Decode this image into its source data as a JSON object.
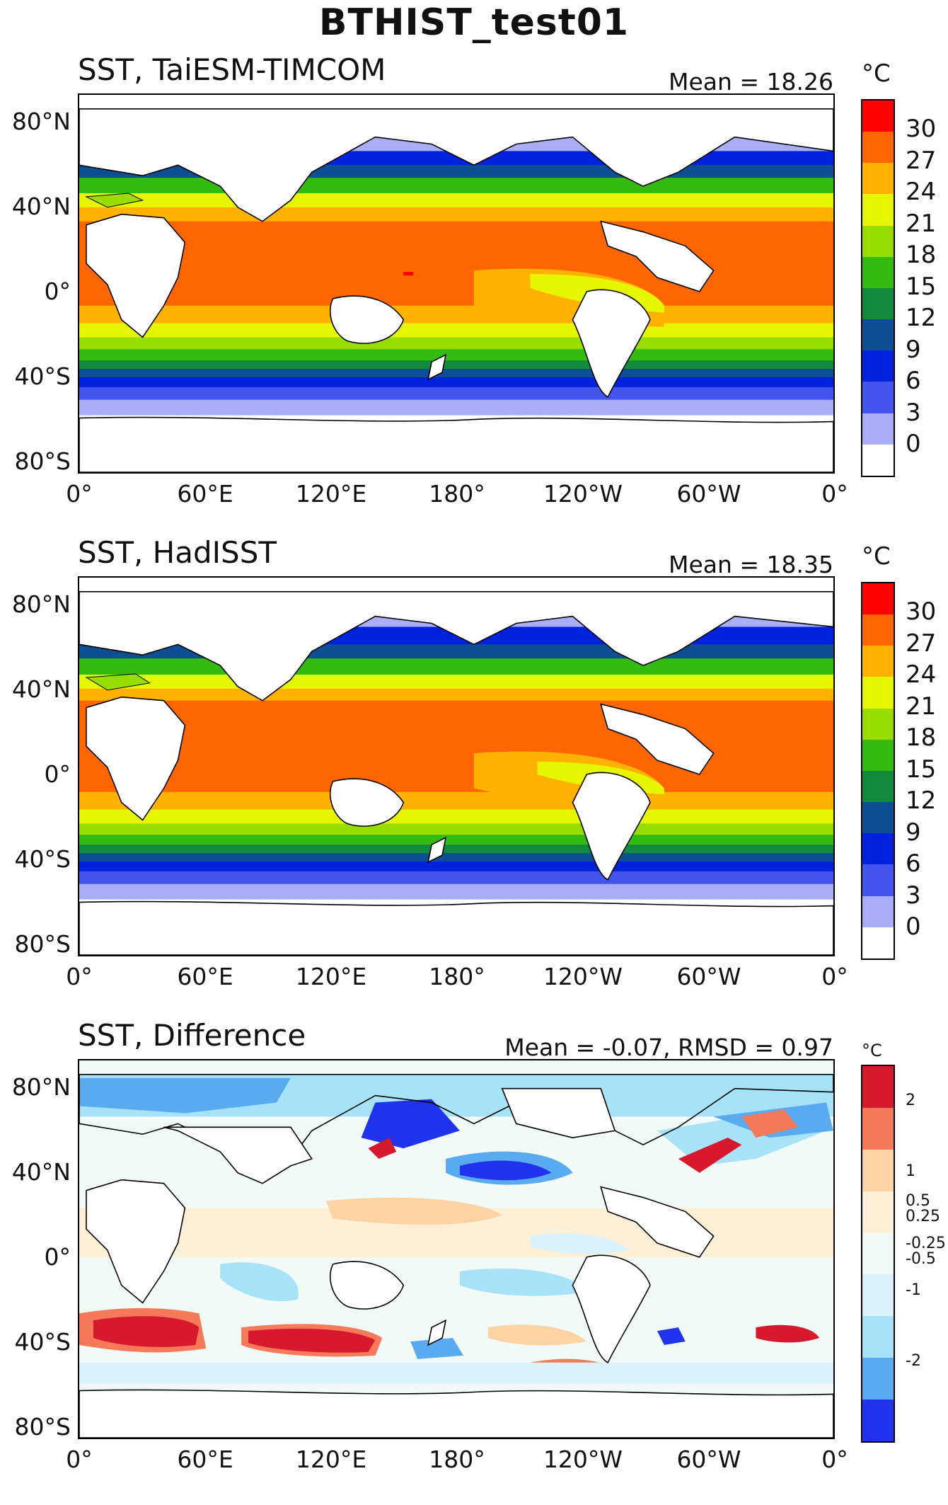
{
  "figure_title": "BTHIST_test01",
  "axes": {
    "lat_labels": [
      "80°N",
      "40°N",
      "0°",
      "40°S",
      "80°S"
    ],
    "lon_labels": [
      "0°",
      "60°E",
      "120°E",
      "180°",
      "120°W",
      "60°W",
      "0°"
    ]
  },
  "panels": [
    {
      "title": "SST, TaiESM-TIMCOM",
      "stat": "Mean = 18.26",
      "unit": "°C",
      "colorbar": {
        "labels": [
          "30",
          "27",
          "24",
          "21",
          "18",
          "15",
          "12",
          "9",
          "6",
          "3",
          "0"
        ],
        "colors": [
          "#ff0000",
          "#ff6600",
          "#ffb300",
          "#e6f500",
          "#99dd00",
          "#33bb11",
          "#128a3c",
          "#0c4f93",
          "#0022dd",
          "#4455ee",
          "#a9aef7",
          "#ffffff"
        ]
      }
    },
    {
      "title": "SST, HadISST",
      "stat": "Mean = 18.35",
      "unit": "°C",
      "colorbar": {
        "labels": [
          "30",
          "27",
          "24",
          "21",
          "18",
          "15",
          "12",
          "9",
          "6",
          "3",
          "0"
        ],
        "colors": [
          "#ff0000",
          "#ff6600",
          "#ffb300",
          "#e6f500",
          "#99dd00",
          "#33bb11",
          "#128a3c",
          "#0c4f93",
          "#0022dd",
          "#4455ee",
          "#a9aef7",
          "#ffffff"
        ]
      }
    },
    {
      "title": "SST, Difference",
      "stat": "Mean = -0.07, RMSD = 0.97",
      "unit": "°C",
      "colorbar": {
        "labels": [
          "2",
          "1",
          "0.5",
          "0.25",
          "-0.25",
          "-0.5",
          "-1",
          "-2"
        ],
        "colors": [
          "#d7192e",
          "#f57a5a",
          "#fcd3a3",
          "#fdefd6",
          "#f2faf7",
          "#d9f2fb",
          "#a7e3f8",
          "#5aaaf0",
          "#2233ee"
        ]
      }
    }
  ]
}
